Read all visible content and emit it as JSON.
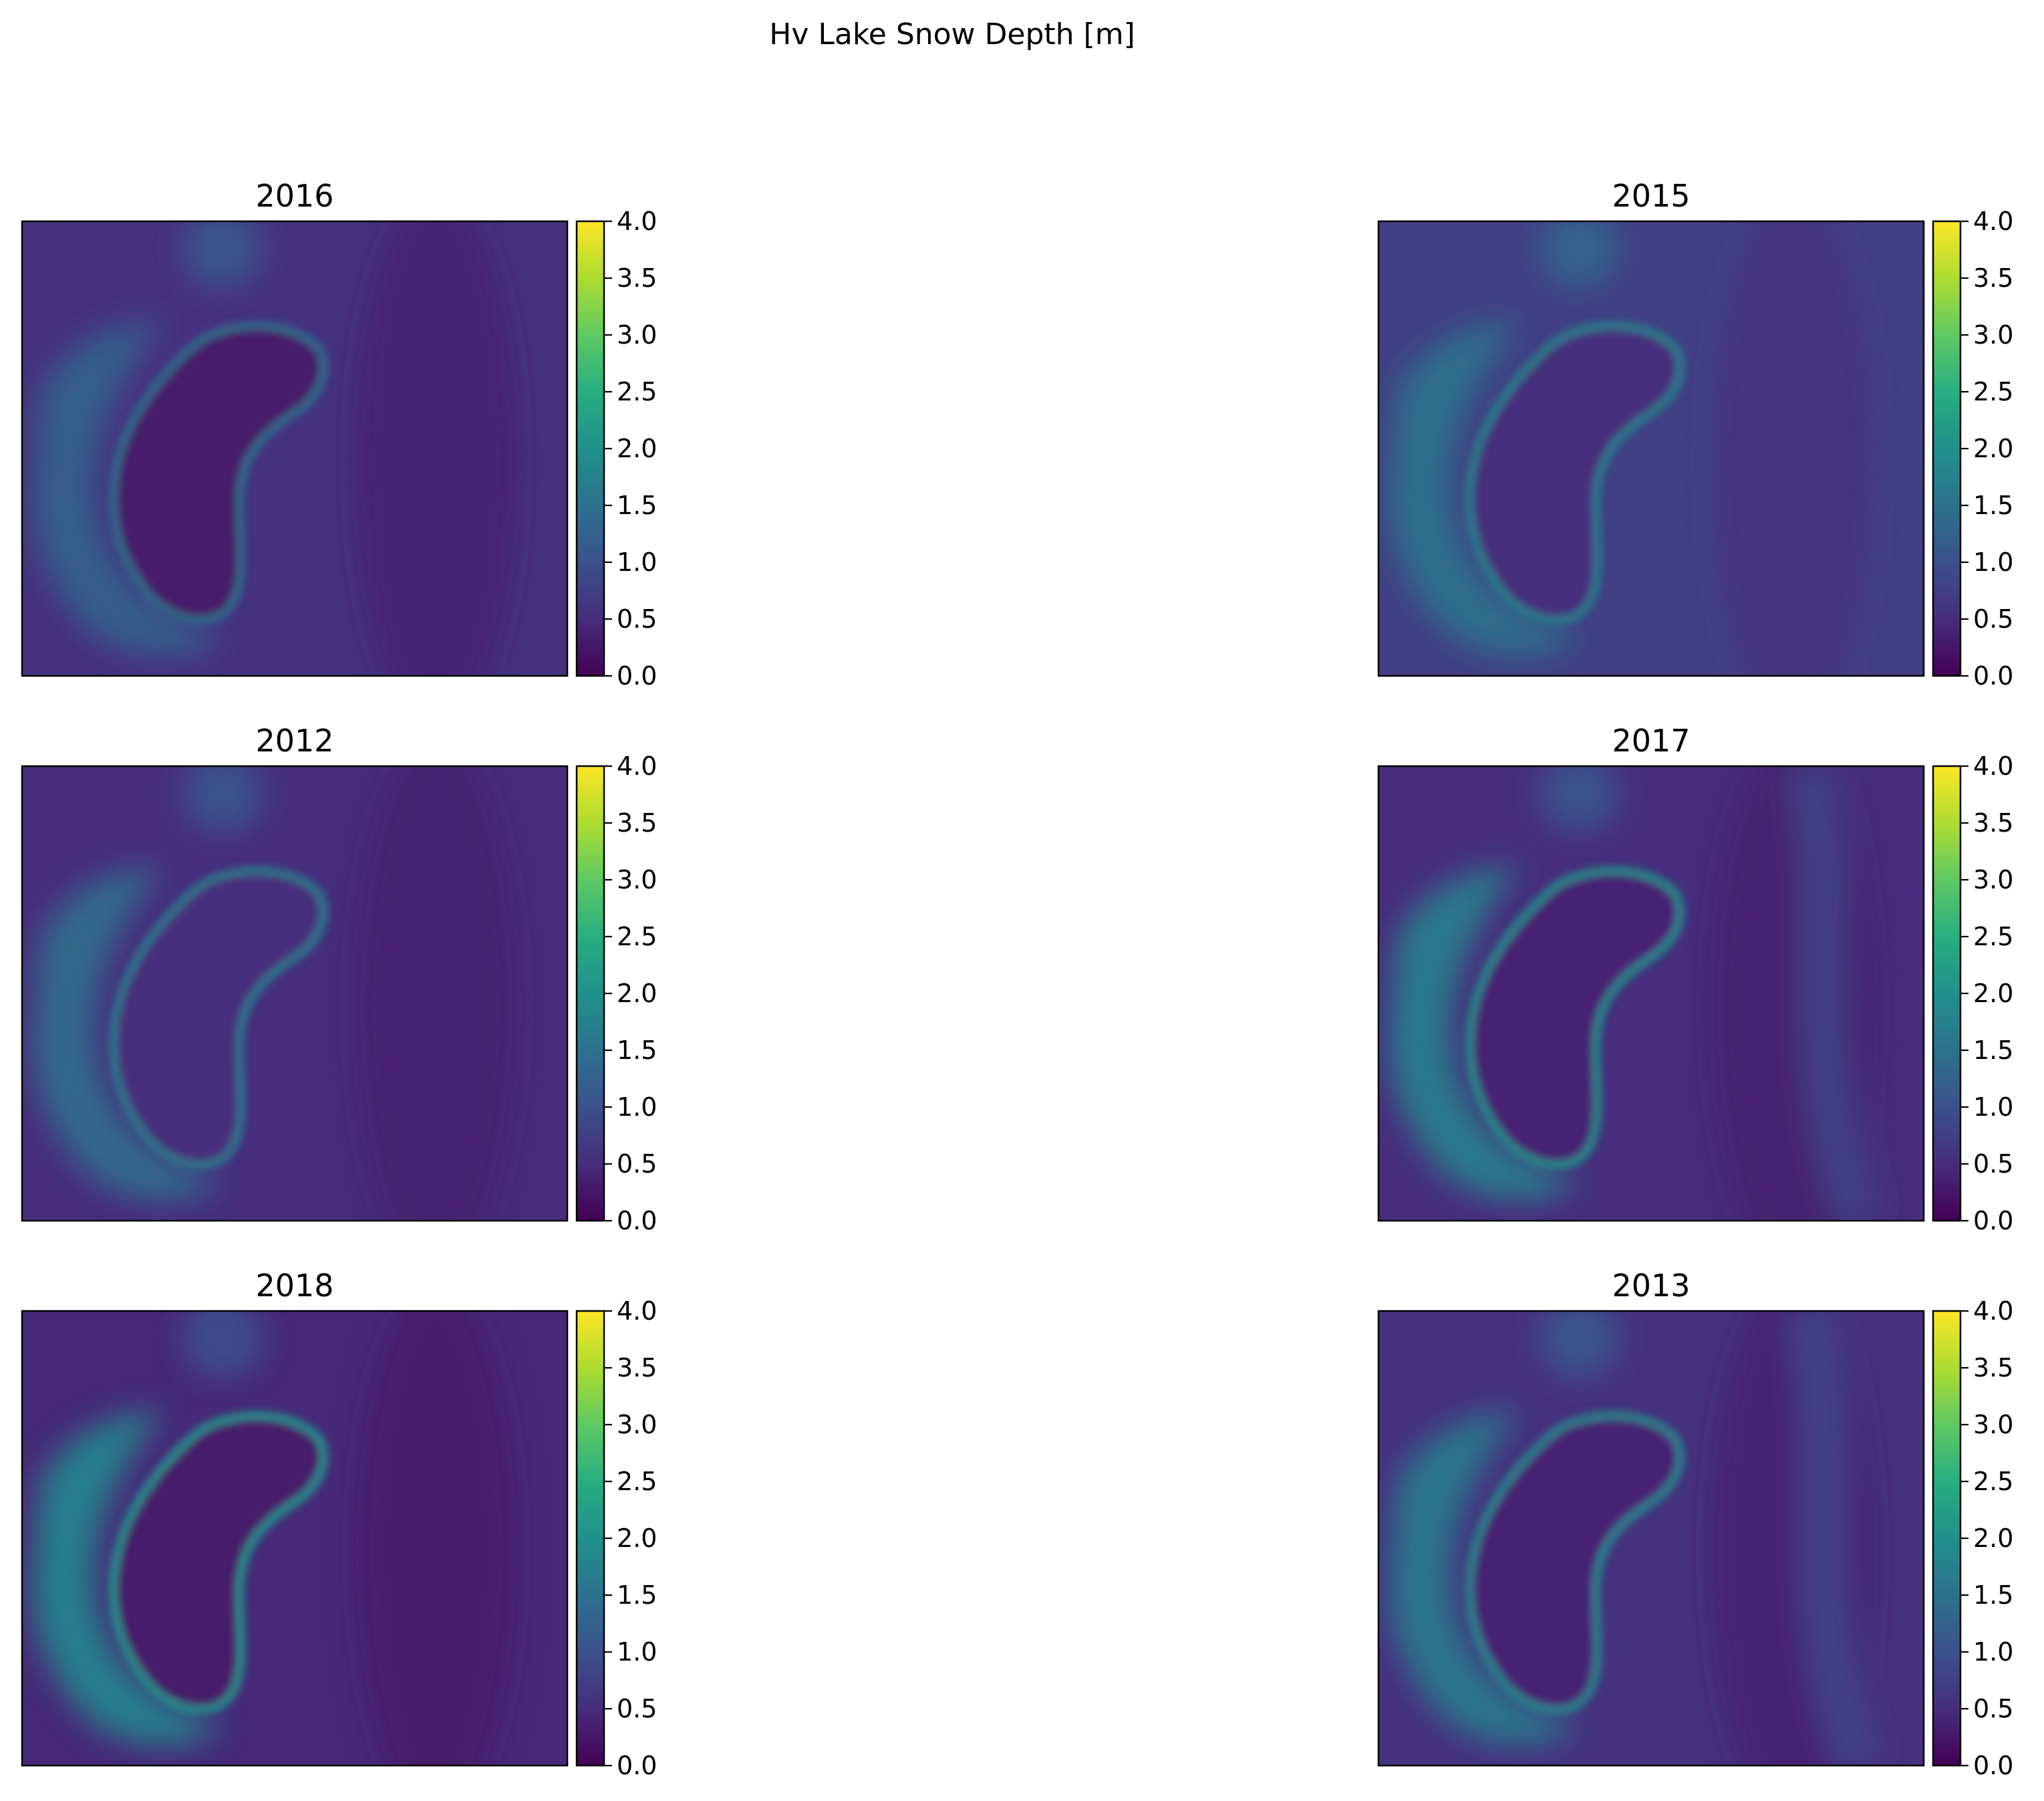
{
  "chart_data": {
    "type": "heatmap",
    "title": "Hv Lake Snow Depth [m]",
    "colormap": "viridis",
    "value_range": [
      0,
      4
    ],
    "colorbar_ticks": [
      "0.0",
      "0.5",
      "1.0",
      "1.5",
      "2.0",
      "2.5",
      "3.0",
      "3.5",
      "4.0"
    ],
    "panels": [
      {
        "title": "2016",
        "background_level": 0.55,
        "lake_interior": 0.3,
        "west_shore_peak": 1.4,
        "east_ridge": 0.0
      },
      {
        "title": "2015",
        "background_level": 0.75,
        "lake_interior": 0.5,
        "west_shore_peak": 1.7,
        "east_ridge": 0.0
      },
      {
        "title": "2012",
        "background_level": 0.5,
        "lake_interior": 0.5,
        "west_shore_peak": 1.6,
        "east_ridge": 0.0
      },
      {
        "title": "2017",
        "background_level": 0.5,
        "lake_interior": 0.4,
        "west_shore_peak": 1.9,
        "east_ridge": 0.75
      },
      {
        "title": "2018",
        "background_level": 0.45,
        "lake_interior": 0.3,
        "west_shore_peak": 2.0,
        "east_ridge": 0.0
      },
      {
        "title": "2013",
        "background_level": 0.55,
        "lake_interior": 0.4,
        "west_shore_peak": 1.8,
        "east_ridge": 0.8
      }
    ]
  }
}
